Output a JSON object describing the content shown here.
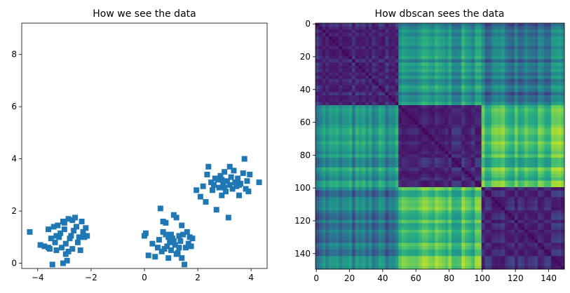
{
  "chart_data": [
    {
      "type": "scatter",
      "title": "How we see the data",
      "xlabel": "",
      "ylabel": "",
      "xlim": [
        -4.6,
        4.6
      ],
      "ylim": [
        -0.2,
        9.2
      ],
      "xticks": [
        -4,
        -2,
        0,
        2,
        4
      ],
      "yticks": [
        0,
        2,
        4,
        6,
        8
      ],
      "tick_labels_x": [
        "−4",
        "−2",
        "0",
        "2",
        "4"
      ],
      "tick_labels_y": [
        "0",
        "2",
        "4",
        "6",
        "8"
      ],
      "marker": "square",
      "color": "#1f77b4",
      "points": [
        [
          -4.3,
          1.2
        ],
        [
          -3.9,
          0.7
        ],
        [
          -3.75,
          0.65
        ],
        [
          -3.6,
          1.3
        ],
        [
          -3.55,
          0.55
        ],
        [
          -3.5,
          0.95
        ],
        [
          -3.45,
          -0.05
        ],
        [
          -3.4,
          1.4
        ],
        [
          -3.35,
          0.8
        ],
        [
          -3.3,
          0.5
        ],
        [
          -3.2,
          1.0
        ],
        [
          -3.15,
          1.15
        ],
        [
          -3.1,
          0.6
        ],
        [
          -3.05,
          1.6
        ],
        [
          -3.0,
          1.3
        ],
        [
          -2.95,
          0.35
        ],
        [
          -2.9,
          0.1
        ],
        [
          -2.85,
          1.7
        ],
        [
          -2.8,
          0.95
        ],
        [
          -2.75,
          1.05
        ],
        [
          -2.7,
          0.55
        ],
        [
          -2.65,
          1.25
        ],
        [
          -2.6,
          1.75
        ],
        [
          -2.55,
          1.4
        ],
        [
          -2.5,
          0.8
        ],
        [
          -2.45,
          1.0
        ],
        [
          -2.4,
          0.5
        ],
        [
          -2.35,
          1.6
        ],
        [
          -2.3,
          1.2
        ],
        [
          -2.25,
          1.0
        ],
        [
          -2.2,
          1.35
        ],
        [
          -2.15,
          1.05
        ],
        [
          -3.25,
          1.45
        ],
        [
          -3.05,
          0.0
        ],
        [
          -2.95,
          0.75
        ],
        [
          -3.6,
          0.6
        ],
        [
          -2.7,
          1.65
        ],
        [
          -3.3,
          1.05
        ],
        [
          -2.85,
          0.45
        ],
        [
          -3.0,
          1.55
        ],
        [
          0.0,
          1.05
        ],
        [
          0.05,
          1.15
        ],
        [
          0.15,
          0.3
        ],
        [
          0.3,
          0.75
        ],
        [
          0.4,
          0.25
        ],
        [
          0.5,
          0.6
        ],
        [
          0.55,
          0.9
        ],
        [
          0.6,
          2.1
        ],
        [
          0.65,
          0.45
        ],
        [
          0.7,
          1.2
        ],
        [
          0.75,
          0.55
        ],
        [
          0.8,
          1.55
        ],
        [
          0.85,
          0.65
        ],
        [
          0.9,
          1.0
        ],
        [
          0.95,
          0.8
        ],
        [
          1.0,
          1.1
        ],
        [
          1.05,
          0.95
        ],
        [
          1.1,
          1.85
        ],
        [
          1.15,
          0.7
        ],
        [
          1.2,
          1.75
        ],
        [
          1.25,
          0.4
        ],
        [
          1.3,
          1.05
        ],
        [
          1.35,
          0.85
        ],
        [
          1.4,
          0.2
        ],
        [
          1.45,
          1.1
        ],
        [
          1.5,
          -0.05
        ],
        [
          1.55,
          0.6
        ],
        [
          1.6,
          1.2
        ],
        [
          1.65,
          0.75
        ],
        [
          1.7,
          1.0
        ],
        [
          1.75,
          0.65
        ],
        [
          1.8,
          0.95
        ],
        [
          1.0,
          0.5
        ],
        [
          1.2,
          0.35
        ],
        [
          0.7,
          1.6
        ],
        [
          1.4,
          1.45
        ],
        [
          0.9,
          0.2
        ],
        [
          1.1,
          0.85
        ],
        [
          1.3,
          0.6
        ],
        [
          0.8,
          1.1
        ],
        [
          1.95,
          2.8
        ],
        [
          2.1,
          2.55
        ],
        [
          2.2,
          2.95
        ],
        [
          2.3,
          2.35
        ],
        [
          2.35,
          3.4
        ],
        [
          2.4,
          3.7
        ],
        [
          2.5,
          3.1
        ],
        [
          2.55,
          2.8
        ],
        [
          2.6,
          3.0
        ],
        [
          2.7,
          2.05
        ],
        [
          2.75,
          3.2
        ],
        [
          2.8,
          2.9
        ],
        [
          2.85,
          3.35
        ],
        [
          2.9,
          2.6
        ],
        [
          2.95,
          3.05
        ],
        [
          3.0,
          3.5
        ],
        [
          3.05,
          2.75
        ],
        [
          3.1,
          3.15
        ],
        [
          3.15,
          1.75
        ],
        [
          3.2,
          3.0
        ],
        [
          3.25,
          3.3
        ],
        [
          3.3,
          2.85
        ],
        [
          3.35,
          3.55
        ],
        [
          3.4,
          3.1
        ],
        [
          3.45,
          2.95
        ],
        [
          3.5,
          3.25
        ],
        [
          3.55,
          2.6
        ],
        [
          3.6,
          3.05
        ],
        [
          3.7,
          3.45
        ],
        [
          3.75,
          4.0
        ],
        [
          3.8,
          2.85
        ],
        [
          3.85,
          3.15
        ],
        [
          3.9,
          2.75
        ],
        [
          3.95,
          3.4
        ],
        [
          4.3,
          3.1
        ],
        [
          3.0,
          2.9
        ],
        [
          2.65,
          3.25
        ],
        [
          3.2,
          3.7
        ],
        [
          3.55,
          3.0
        ],
        [
          2.9,
          3.2
        ]
      ]
    },
    {
      "type": "heatmap",
      "title": "How dbscan sees the data",
      "xlabel": "",
      "ylabel": "",
      "n": 150,
      "xlim": [
        -0.5,
        149.5
      ],
      "ylim": [
        149.5,
        -0.5
      ],
      "xticks": [
        0,
        20,
        40,
        60,
        80,
        100,
        120,
        140
      ],
      "yticks": [
        0,
        20,
        40,
        60,
        80,
        100,
        120,
        140
      ],
      "tick_labels_x": [
        "0",
        "20",
        "40",
        "60",
        "80",
        "100",
        "120",
        "140"
      ],
      "tick_labels_y": [
        "0",
        "20",
        "40",
        "60",
        "80",
        "100",
        "120",
        "140"
      ],
      "colormap": "viridis",
      "block_edges": [
        0,
        50,
        100,
        150
      ],
      "block_values": [
        [
          0.06,
          0.5,
          0.4
        ],
        [
          0.5,
          0.06,
          0.7
        ],
        [
          0.4,
          0.7,
          0.06
        ]
      ]
    }
  ]
}
